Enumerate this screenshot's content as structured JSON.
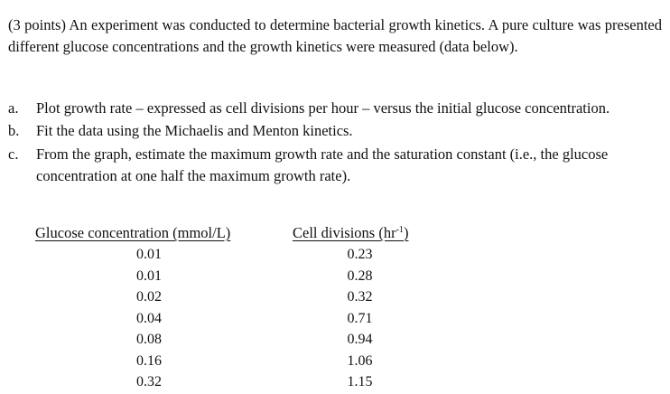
{
  "problem": {
    "intro": "(3 points) An experiment was conducted to determine bacterial growth kinetics. A pure culture was presented different glucose concentrations and the growth kinetics were measured (data below).",
    "items": [
      {
        "marker": "a.",
        "text": "Plot growth rate – expressed as cell divisions per hour – versus the initial glucose concentration."
      },
      {
        "marker": "b.",
        "text": "Fit the data using the Michaelis and Menton kinetics."
      },
      {
        "marker": "c.",
        "text": "From the graph, estimate the maximum growth rate and the saturation constant (i.e., the glucose concentration at one half the maximum growth rate)."
      }
    ]
  },
  "table": {
    "headers": {
      "glucose": "Glucose concentration (mmol/L)",
      "cells_prefix": "Cell divisions (hr",
      "cells_sup": "-1",
      "cells_suffix": ")"
    },
    "glucose": [
      "0.01",
      "0.01",
      "0.02",
      "0.04",
      "0.08",
      "0.16",
      "0.32"
    ],
    "cells": [
      "0.23",
      "0.28",
      "0.32",
      "0.71",
      "0.94",
      "1.06",
      "1.15"
    ]
  }
}
